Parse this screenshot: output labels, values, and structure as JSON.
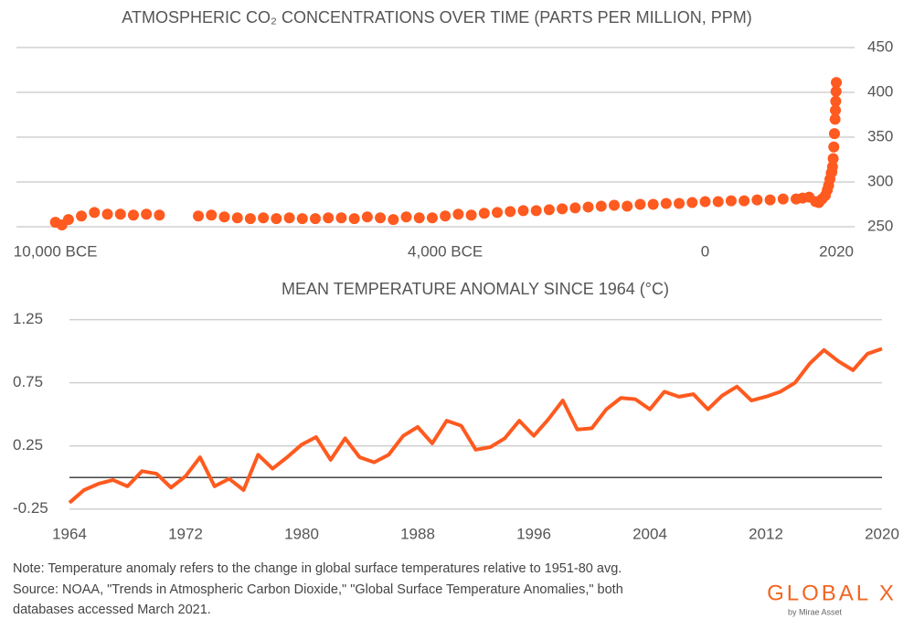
{
  "chart_data": [
    {
      "type": "scatter",
      "title": "ATMOSPHERIC CO₂ CONCENTRATIONS OVER TIME (PARTS PER MILLION, PPM)",
      "series": [
        {
          "name": "CO₂",
          "color": "#ff5a1f",
          "x": [
            -10000,
            -9900,
            -9800,
            -9600,
            -9400,
            -9200,
            -9000,
            -8800,
            -8600,
            -8400,
            -7800,
            -7600,
            -7400,
            -7200,
            -7000,
            -6800,
            -6600,
            -6400,
            -6200,
            -6000,
            -5800,
            -5600,
            -5400,
            -5200,
            -5000,
            -4800,
            -4600,
            -4400,
            -4200,
            -4000,
            -3800,
            -3600,
            -3400,
            -3200,
            -3000,
            -2800,
            -2600,
            -2400,
            -2200,
            -2000,
            -1800,
            -1600,
            -1400,
            -1200,
            -1000,
            -800,
            -600,
            -400,
            -200,
            0,
            200,
            400,
            600,
            800,
            1000,
            1200,
            1400,
            1500,
            1600,
            1700,
            1750,
            1800,
            1850,
            1880,
            1900,
            1920,
            1940,
            1950,
            1960,
            1970,
            1980,
            1990,
            2000,
            2005,
            2010,
            2015,
            2019
          ],
          "values": [
            255,
            252,
            258,
            262,
            266,
            264,
            264,
            263,
            264,
            263,
            262,
            263,
            261,
            260,
            259,
            260,
            259,
            260,
            259,
            259,
            260,
            260,
            259,
            261,
            260,
            258,
            261,
            260,
            260,
            262,
            264,
            263,
            265,
            266,
            267,
            268,
            268,
            269,
            270,
            271,
            272,
            273,
            274,
            273,
            275,
            275,
            276,
            276,
            277,
            278,
            278,
            279,
            279,
            280,
            280,
            281,
            281,
            282,
            283,
            278,
            277,
            281,
            285,
            291,
            296,
            303,
            310,
            311,
            317,
            326,
            339,
            354,
            370,
            380,
            390,
            401,
            411
          ]
        }
      ],
      "xlim": [
        -10600,
        2300
      ],
      "xticks": [
        {
          "value": -10000,
          "label": "10,000 BCE"
        },
        {
          "value": -4000,
          "label": "4,000 BCE"
        },
        0,
        2020
      ],
      "ylim": [
        250,
        450
      ],
      "yticks": [
        250,
        300,
        350,
        400,
        450
      ],
      "grid": true
    },
    {
      "type": "line",
      "title": "MEAN TEMPERATURE ANOMALY SINCE 1964  (°C)",
      "series": [
        {
          "name": "Temperature anomaly",
          "color": "#ff5a1f",
          "x": [
            1964,
            1965,
            1966,
            1967,
            1968,
            1969,
            1970,
            1971,
            1972,
            1973,
            1974,
            1975,
            1976,
            1977,
            1978,
            1979,
            1980,
            1981,
            1982,
            1983,
            1984,
            1985,
            1986,
            1987,
            1988,
            1989,
            1990,
            1991,
            1992,
            1993,
            1994,
            1995,
            1996,
            1997,
            1998,
            1999,
            2000,
            2001,
            2002,
            2003,
            2004,
            2005,
            2006,
            2007,
            2008,
            2009,
            2010,
            2011,
            2012,
            2013,
            2014,
            2015,
            2016,
            2017,
            2018,
            2019,
            2020
          ],
          "values": [
            -0.2,
            -0.1,
            -0.05,
            -0.02,
            -0.07,
            0.05,
            0.03,
            -0.08,
            0.01,
            0.16,
            -0.07,
            -0.01,
            -0.1,
            0.18,
            0.07,
            0.16,
            0.26,
            0.32,
            0.14,
            0.31,
            0.16,
            0.12,
            0.18,
            0.33,
            0.4,
            0.27,
            0.45,
            0.41,
            0.22,
            0.24,
            0.31,
            0.45,
            0.33,
            0.46,
            0.61,
            0.38,
            0.39,
            0.54,
            0.63,
            0.62,
            0.54,
            0.68,
            0.64,
            0.66,
            0.54,
            0.65,
            0.72,
            0.61,
            0.64,
            0.68,
            0.75,
            0.9,
            1.01,
            0.92,
            0.85,
            0.98,
            1.02
          ]
        }
      ],
      "xlim": [
        1964,
        2020
      ],
      "xticks": [
        1964,
        1972,
        1980,
        1988,
        1996,
        2004,
        2012,
        2020
      ],
      "ylim": [
        -0.31,
        1.32
      ],
      "yticks": [
        -0.25,
        0.25,
        0.75,
        1.25
      ],
      "grid": true,
      "reference_line": 0
    }
  ],
  "notes": [
    "Note: Temperature anomaly refers to the change in global surface temperatures relative to 1951-80 avg.",
    "Source: NOAA, \"Trends in Atmospheric Carbon Dioxide,\" \"Global Surface Temperature Anomalies,\" both",
    "databases accessed March 2021."
  ],
  "logo": {
    "name": "GLOBAL X",
    "tagline": "by Mirae Asset"
  }
}
